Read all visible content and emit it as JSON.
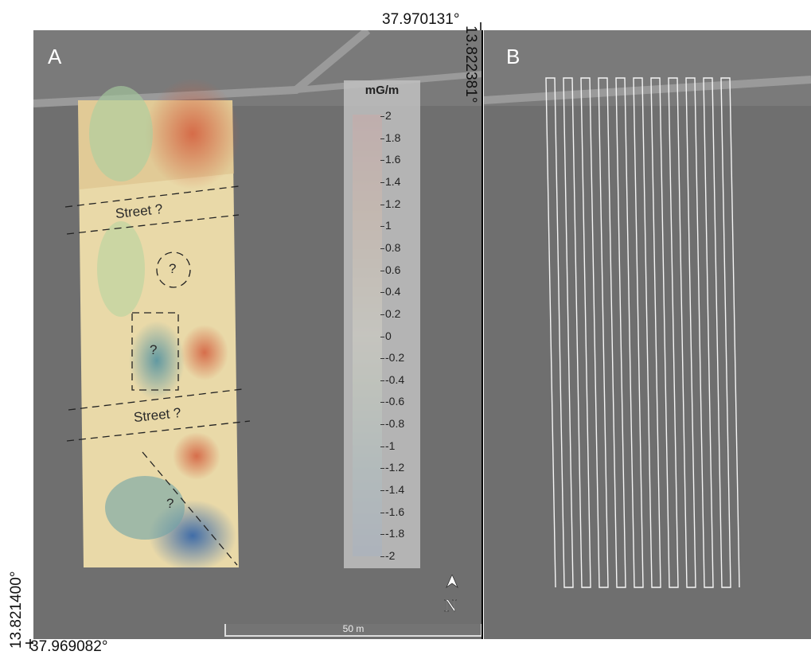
{
  "panel_a": {
    "letter": "A"
  },
  "panel_b": {
    "letter": "B"
  },
  "coordinates": {
    "top_latitude": "37.970131°",
    "bottom_latitude": "37.969082°",
    "right_longitude": "13.822381°",
    "left_longitude": "13.821400°"
  },
  "legend": {
    "title": "mG/m",
    "ticks": [
      "2",
      "1.8",
      "1.6",
      "1.4",
      "1.2",
      "1",
      "0.8",
      "0.6",
      "0.4",
      "0.2",
      "0",
      "-0.2",
      "-0.4",
      "-0.6",
      "-0.8",
      "-1",
      "-1.2",
      "-1.4",
      "-1.6",
      "-1.8",
      "-2"
    ]
  },
  "annotations": {
    "street_1": "Street ?",
    "street_2": "Street ?",
    "circle_q": "?",
    "rect_q": "?",
    "diagonal_q": "?"
  },
  "scale_bar": {
    "label": "50 m"
  },
  "north_arrow": {
    "label": "N"
  },
  "colors": {
    "high": "#c0392b",
    "mid": "#f2e8b0",
    "low": "#2c5aa0"
  }
}
